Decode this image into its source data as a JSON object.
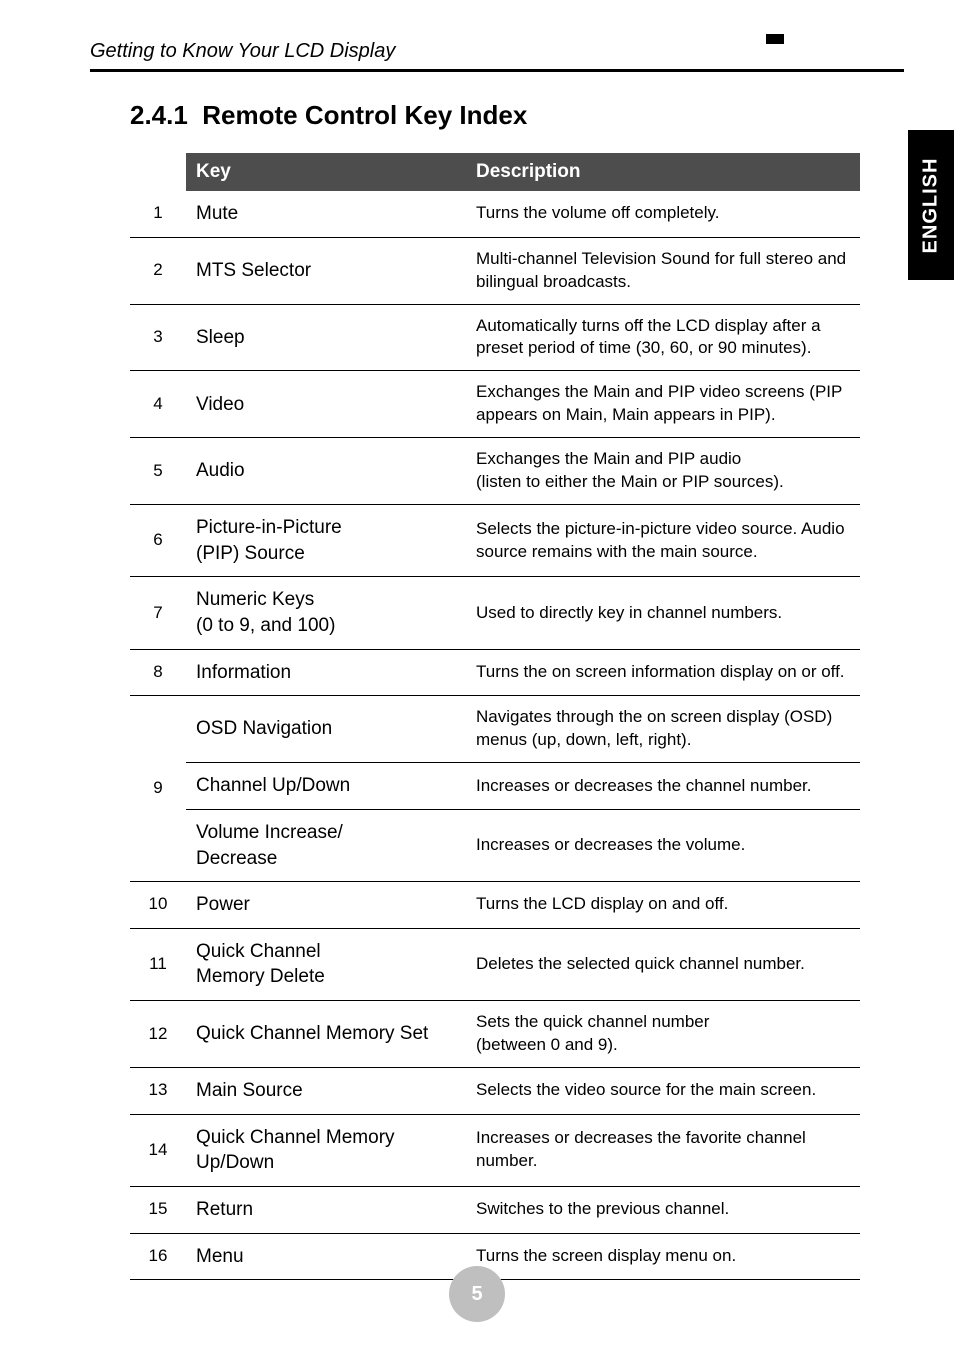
{
  "header": {
    "breadcrumb": "Getting to Know Your LCD Display"
  },
  "section": {
    "number": "2.4.1",
    "title": "Remote Control Key Index"
  },
  "sidetab": "ENGLISH",
  "table": {
    "headers": {
      "key": "Key",
      "description": "Description"
    },
    "rows": [
      {
        "num": "1",
        "key": "Mute",
        "desc": "Turns the volume off completely.",
        "rowspan": 1
      },
      {
        "num": "2",
        "key": "MTS Selector",
        "desc": "Multi-channel Television Sound for full stereo and bilingual broadcasts.",
        "rowspan": 1
      },
      {
        "num": "3",
        "key": "Sleep",
        "desc": "Automatically turns off the LCD display after a preset period of time (30, 60, or 90 minutes).",
        "rowspan": 1
      },
      {
        "num": "4",
        "key": "Video",
        "desc": "Exchanges the Main and PIP video screens (PIP appears on Main, Main appears in PIP).",
        "rowspan": 1
      },
      {
        "num": "5",
        "key": "Audio",
        "desc": "Exchanges the Main and PIP audio\n(listen to either the Main or PIP sources).",
        "rowspan": 1
      },
      {
        "num": "6",
        "key": "Picture-in-Picture\n(PIP) Source",
        "desc": "Selects the picture-in-picture video source. Audio source remains with the main source.",
        "rowspan": 1
      },
      {
        "num": "7",
        "key": "Numeric Keys\n(0 to 9, and 100)",
        "desc": "Used to directly key in channel numbers.",
        "rowspan": 1
      },
      {
        "num": "8",
        "key": "Information",
        "desc": "Turns the on screen information display on or off.",
        "rowspan": 1
      },
      {
        "num": "9",
        "key": "OSD Navigation",
        "desc": "Navigates through the on screen display (OSD) menus (up, down, left, right).",
        "rowspan": 3,
        "group": "start"
      },
      {
        "num": "",
        "key": "Channel Up/Down",
        "desc": "Increases or decreases the channel number.",
        "group": "mid"
      },
      {
        "num": "",
        "key": "Volume Increase/\nDecrease",
        "desc": "Increases or decreases the volume.",
        "group": "end"
      },
      {
        "num": "10",
        "key": "Power",
        "desc": "Turns the LCD display on and off.",
        "rowspan": 1
      },
      {
        "num": "11",
        "key": "Quick Channel\nMemory Delete",
        "desc": "Deletes the selected quick channel number.",
        "rowspan": 1
      },
      {
        "num": "12",
        "key": "Quick Channel Memory Set",
        "desc": "Sets the quick channel number\n(between 0 and 9).",
        "rowspan": 1
      },
      {
        "num": "13",
        "key": "Main Source",
        "desc": "Selects the video source for the main screen.",
        "rowspan": 1
      },
      {
        "num": "14",
        "key": "Quick Channel Memory Up/Down",
        "desc": "Increases or decreases the favorite channel number.",
        "rowspan": 1
      },
      {
        "num": "15",
        "key": "Return",
        "desc": "Switches to the previous channel.",
        "rowspan": 1
      },
      {
        "num": "16",
        "key": "Menu",
        "desc": "Turns the screen display menu on.",
        "rowspan": 1
      }
    ]
  },
  "page_number": "5"
}
